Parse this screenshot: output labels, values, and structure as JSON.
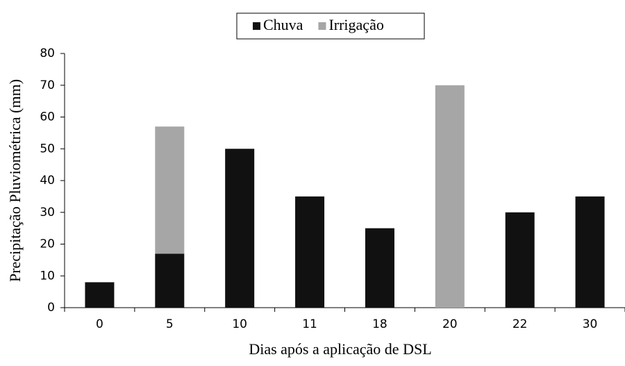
{
  "chart_data": {
    "type": "stacked_bar",
    "x_label": "Dias após a aplicação de DSL",
    "y_label": "Precipitação Pluviométrica (mm)",
    "categories": [
      "0",
      "5",
      "10",
      "11",
      "18",
      "20",
      "22",
      "30"
    ],
    "series": [
      {
        "name": "Chuva",
        "color": "#111111",
        "values": [
          8,
          17,
          50,
          35,
          25,
          0,
          30,
          35
        ]
      },
      {
        "name": "Irrigação",
        "color": "#a6a6a6",
        "values": [
          0,
          40,
          0,
          0,
          0,
          70,
          0,
          0
        ]
      }
    ],
    "ylim": [
      0,
      80
    ],
    "yticks": [
      0,
      10,
      20,
      30,
      40,
      50,
      60,
      70,
      80
    ],
    "grid": false,
    "legend": "top"
  }
}
